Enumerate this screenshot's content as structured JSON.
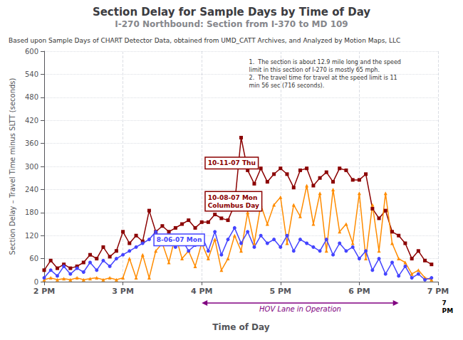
{
  "chart_data": {
    "type": "line",
    "title": "Section Delay for Sample Days by Time of Day",
    "subtitle": "I-270 Northbound: Section from I-370 to MD 109",
    "source_note": "Based upon Sample Days of CHART Detector Data, obtained from UMD_CATT Archives, and Analyzed by Motion Maps, LLC",
    "note": "1.  The section is about 12.9 mile long and the speed\nlimit in this section of I-270 is mostly 65 mph.\n2.  The travel time for travel at the speed limit is 11\nmin 56 sec (716 seconds).",
    "xlabel": "Time of Day",
    "ylabel": "Section Delay – Travel Time minus SLTT (seconds)",
    "x": [
      14.0,
      14.083,
      14.167,
      14.25,
      14.333,
      14.417,
      14.5,
      14.583,
      14.667,
      14.75,
      14.833,
      14.917,
      15.0,
      15.083,
      15.167,
      15.25,
      15.333,
      15.417,
      15.5,
      15.583,
      15.667,
      15.75,
      15.833,
      15.917,
      16.0,
      16.083,
      16.167,
      16.25,
      16.333,
      16.417,
      16.5,
      16.583,
      16.667,
      16.75,
      16.833,
      16.917,
      17.0,
      17.083,
      17.167,
      17.25,
      17.333,
      17.417,
      17.5,
      17.583,
      17.667,
      17.75,
      17.833,
      17.917,
      18.0,
      18.083,
      18.167,
      18.25,
      18.333,
      18.417,
      18.5,
      18.583,
      18.667,
      18.75,
      18.833,
      18.917
    ],
    "xlim": [
      14,
      19
    ],
    "xticks": [
      {
        "value": 14,
        "label": "2 PM"
      },
      {
        "value": 15,
        "label": "3 PM"
      },
      {
        "value": 16,
        "label": "4 PM"
      },
      {
        "value": 17,
        "label": "5 PM"
      },
      {
        "value": 18,
        "label": "6 PM"
      },
      {
        "value": 19,
        "label": "7 PM"
      }
    ],
    "ylim": [
      0,
      600
    ],
    "yticks": [
      0,
      60,
      120,
      180,
      240,
      300,
      360,
      420,
      480,
      540,
      600
    ],
    "grid": true,
    "series": [
      {
        "name": "10-11-07 Thu",
        "color": "#8b0000",
        "marker": "square",
        "values": [
          30,
          55,
          35,
          45,
          35,
          40,
          50,
          70,
          60,
          90,
          65,
          80,
          130,
          100,
          120,
          105,
          185,
          130,
          145,
          130,
          140,
          150,
          160,
          140,
          155,
          155,
          175,
          165,
          160,
          200,
          375,
          290,
          255,
          295,
          260,
          280,
          295,
          280,
          245,
          290,
          295,
          250,
          270,
          285,
          260,
          295,
          290,
          265,
          265,
          280,
          190,
          165,
          185,
          130,
          120,
          100,
          60,
          80,
          55,
          45
        ]
      },
      {
        "name": "10-08-07 Mon\nColumbus Day",
        "color": "#ff8c00",
        "marker": "triangle",
        "values": [
          5,
          10,
          5,
          8,
          5,
          10,
          5,
          8,
          10,
          5,
          10,
          5,
          10,
          60,
          10,
          70,
          10,
          80,
          100,
          50,
          120,
          60,
          80,
          40,
          100,
          60,
          110,
          30,
          60,
          120,
          80,
          180,
          100,
          200,
          150,
          200,
          220,
          100,
          200,
          170,
          250,
          150,
          230,
          80,
          240,
          130,
          150,
          100,
          230,
          60,
          200,
          80,
          230,
          100,
          60,
          50,
          20,
          30,
          10,
          5
        ]
      },
      {
        "name": "8-06-07 Mon",
        "color": "#4444ff",
        "marker": "circle",
        "values": [
          10,
          30,
          15,
          40,
          20,
          35,
          25,
          50,
          30,
          55,
          40,
          60,
          70,
          80,
          90,
          100,
          110,
          130,
          100,
          120,
          90,
          110,
          80,
          95,
          120,
          80,
          130,
          70,
          110,
          140,
          100,
          130,
          90,
          120,
          100,
          110,
          90,
          120,
          80,
          110,
          100,
          90,
          80,
          110,
          70,
          100,
          80,
          90,
          60,
          80,
          30,
          60,
          20,
          50,
          15,
          40,
          10,
          20,
          5,
          10
        ]
      }
    ],
    "annotations": [
      {
        "text": "10-11-07 Thu",
        "x": 16.05,
        "y": 295,
        "color": "#8b0000"
      },
      {
        "text": "10-08-07 Mon\nColumbus Day",
        "x": 16.05,
        "y": 185,
        "color": "#8b0000"
      },
      {
        "text": "8-06-07 Mon",
        "x": 15.4,
        "y": 95,
        "color": "#4444ff"
      }
    ],
    "hov": {
      "label": "HOV Lane in Operation",
      "start": 16.0,
      "end": 18.5,
      "color": "#800080"
    },
    "axis_annotations": [
      {
        "text": "7\nPM",
        "x": 19.05
      }
    ]
  }
}
